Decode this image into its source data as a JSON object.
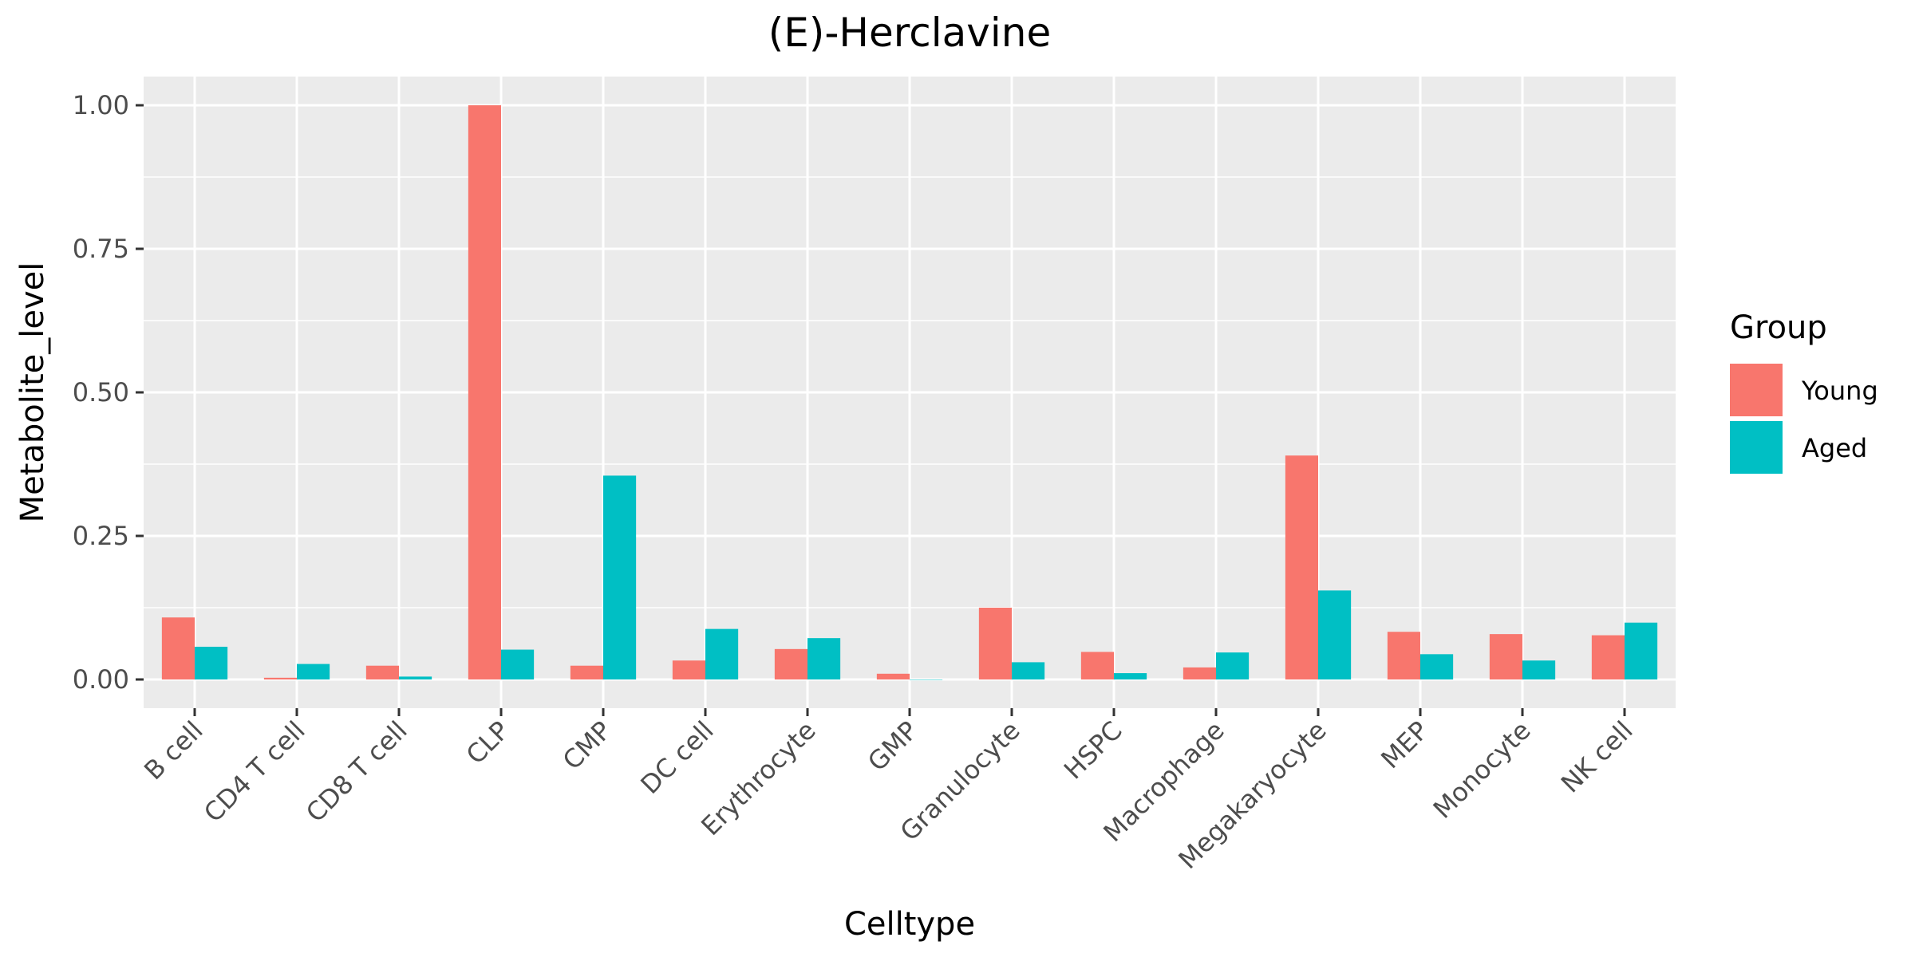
{
  "chart_data": {
    "type": "bar",
    "title": "(E)-Herclavine",
    "xlabel": "Celltype",
    "ylabel": "Metabolite_level",
    "ylim": [
      -0.05,
      1.05
    ],
    "yticks": [
      0,
      0.25,
      0.5,
      0.75,
      1.0
    ],
    "ytick_labels": [
      "0.00",
      "0.25",
      "0.50",
      "0.75",
      "1.00"
    ],
    "categories": [
      "B cell",
      "CD4 T cell",
      "CD8 T cell",
      "CLP",
      "CMP",
      "DC cell",
      "Erythrocyte",
      "GMP",
      "Granulocyte",
      "HSPC",
      "Macrophage",
      "Megakaryocyte",
      "MEP",
      "Monocyte",
      "NK cell"
    ],
    "series": [
      {
        "name": "Young",
        "color": "#F8766D",
        "values": [
          0.108,
          0.003,
          0.024,
          1.0,
          0.024,
          0.033,
          0.053,
          0.01,
          0.125,
          0.048,
          0.021,
          0.39,
          0.083,
          0.079,
          0.077
        ]
      },
      {
        "name": "Aged",
        "color": "#00BFC4",
        "values": [
          0.057,
          0.027,
          0.005,
          0.052,
          0.355,
          0.088,
          0.072,
          0.0,
          0.03,
          0.011,
          0.047,
          0.155,
          0.044,
          0.033,
          0.099
        ]
      }
    ],
    "legend": {
      "title": "Group",
      "position": "right"
    },
    "grid": true
  }
}
